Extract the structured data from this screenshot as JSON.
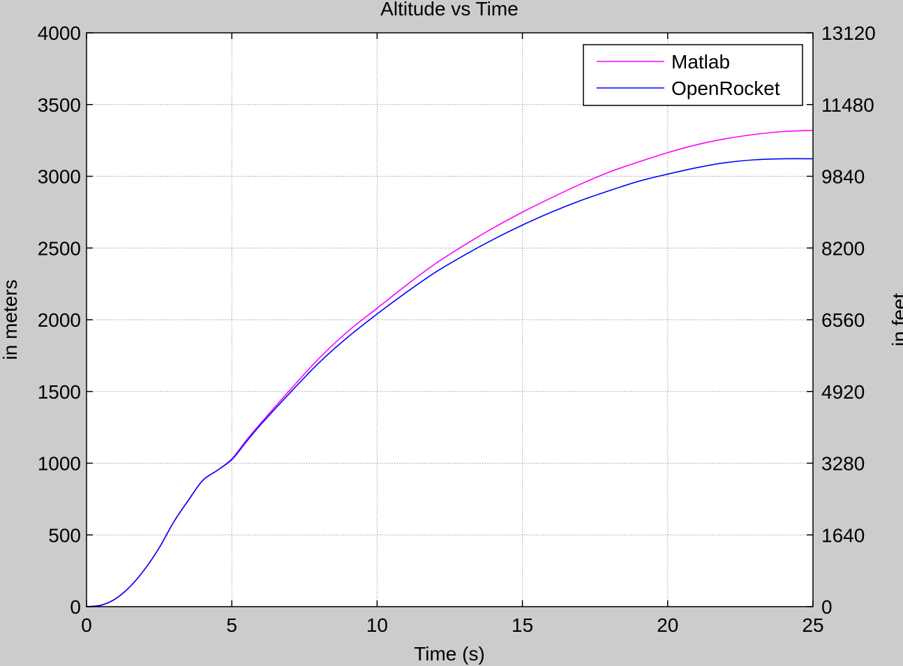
{
  "chart_data": {
    "type": "line",
    "title": "Altitude vs Time",
    "xlabel": "Time (s)",
    "ylabel": "in meters",
    "ylabel_right": "in feet",
    "xlim": [
      0,
      25
    ],
    "ylim": [
      0,
      4000
    ],
    "ylim_right": [
      0,
      13120
    ],
    "x_ticks": [
      0,
      5,
      10,
      15,
      20,
      25
    ],
    "y_ticks": [
      0,
      500,
      1000,
      1500,
      2000,
      2500,
      3000,
      3500,
      4000
    ],
    "y_ticks_right": [
      0,
      1640,
      3280,
      4920,
      6560,
      8200,
      9840,
      11480,
      13120
    ],
    "grid": true,
    "legend_position": "top-right",
    "series": [
      {
        "name": "Matlab",
        "color": "#ff00ff",
        "x": [
          0,
          0.5,
          1,
          1.5,
          2,
          2.5,
          3,
          3.5,
          4,
          4.5,
          5,
          5.5,
          6,
          7,
          8,
          9,
          10,
          11,
          12,
          13,
          14,
          15,
          16,
          17,
          18,
          19,
          20,
          21,
          22,
          23,
          24,
          25
        ],
        "y": [
          0,
          10,
          55,
          140,
          260,
          410,
          590,
          740,
          880,
          950,
          1030,
          1160,
          1280,
          1510,
          1730,
          1920,
          2080,
          2240,
          2390,
          2520,
          2640,
          2750,
          2850,
          2945,
          3030,
          3100,
          3165,
          3220,
          3262,
          3292,
          3312,
          3320
        ]
      },
      {
        "name": "OpenRocket",
        "color": "#0000ff",
        "x": [
          0,
          0.5,
          1,
          1.5,
          2,
          2.5,
          3,
          3.5,
          4,
          4.5,
          5,
          5.5,
          6,
          7,
          8,
          9,
          10,
          11,
          12,
          13,
          14,
          15,
          16,
          17,
          18,
          19,
          20,
          21,
          22,
          23,
          24,
          25
        ],
        "y": [
          0,
          10,
          55,
          140,
          260,
          410,
          590,
          740,
          880,
          950,
          1025,
          1150,
          1270,
          1490,
          1700,
          1880,
          2040,
          2190,
          2330,
          2450,
          2560,
          2660,
          2750,
          2830,
          2900,
          2965,
          3015,
          3060,
          3095,
          3115,
          3122,
          3122
        ]
      }
    ]
  }
}
